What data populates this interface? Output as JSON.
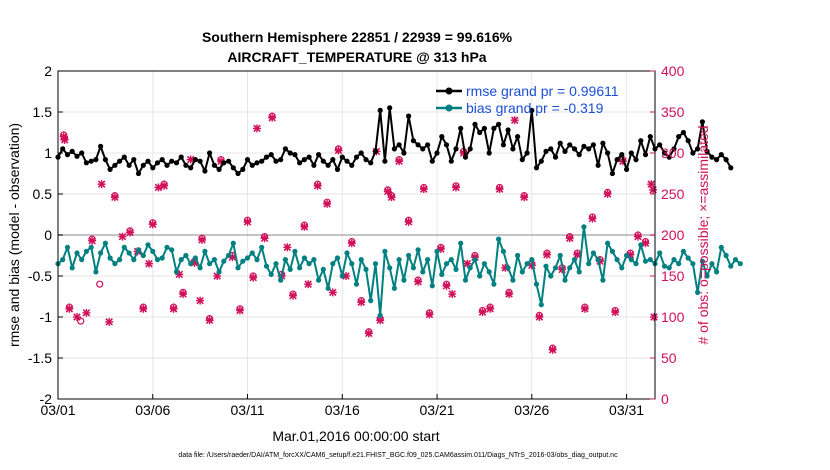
{
  "chart_data": {
    "type": "line",
    "title_line1": "Southern Hemisphere 22851 / 22939 = 99.616%",
    "title_line2": "AIRCRAFT_TEMPERATURE @ 313 hPa",
    "xlabel": "Mar.01,2016 00:00:00 start",
    "ylabel_left": "rmse and bias (model - observation)",
    "ylabel_right": "# of obs: o=possible; ×=assimilated",
    "footer": "data file: /Users/raeder/DAI/ATM_forcXX/CAM6_setup/f.e21.FHIST_BGC.f09_025.CAM6assim.011/Diags_NTrS_2016-03/obs_diag_output.nc",
    "x_ticks": [
      {
        "label": "03/01",
        "day": 0
      },
      {
        "label": "03/06",
        "day": 5
      },
      {
        "label": "03/11",
        "day": 10
      },
      {
        "label": "03/16",
        "day": 15
      },
      {
        "label": "03/21",
        "day": 20
      },
      {
        "label": "03/26",
        "day": 25
      },
      {
        "label": "03/31",
        "day": 30
      }
    ],
    "xlim_days": [
      0,
      31.5
    ],
    "ylim_left": [
      -2,
      2
    ],
    "y_ticks_left": [
      "-2",
      "-1.5",
      "-1",
      "-0.5",
      "0",
      "0.5",
      "1",
      "1.5",
      "2"
    ],
    "ylim_right": [
      0,
      400
    ],
    "y_ticks_right": [
      "0",
      "50",
      "100",
      "150",
      "200",
      "250",
      "300",
      "350",
      "400"
    ],
    "colors": {
      "rmse": "#000000",
      "bias": "#008080",
      "counts": "#d0105a",
      "legend_text": "#1a4fd6",
      "zero_line": "#b0b0b0"
    },
    "series": [
      {
        "name": "rmse grand pr = 0.99611",
        "key": "rmse",
        "step_days": 0.25,
        "values": [
          0.95,
          1.05,
          0.98,
          1.02,
          0.96,
          1.0,
          0.88,
          0.9,
          0.92,
          1.08,
          0.92,
          0.8,
          0.85,
          0.9,
          0.95,
          0.85,
          0.92,
          0.75,
          0.85,
          0.9,
          0.82,
          0.88,
          0.92,
          0.85,
          0.9,
          0.88,
          0.95,
          0.85,
          0.82,
          0.92,
          0.9,
          0.78,
          1.0,
          0.85,
          0.8,
          0.88,
          0.9,
          0.82,
          0.75,
          0.8,
          0.92,
          0.85,
          0.88,
          0.9,
          0.95,
          0.98,
          0.9,
          0.92,
          1.05,
          1.0,
          0.98,
          0.88,
          0.92,
          0.95,
          0.85,
          0.98,
          0.9,
          0.85,
          0.92,
          0.8,
          0.95,
          0.9,
          0.85,
          0.95,
          1.0,
          0.92,
          0.88,
          1.02,
          1.52,
          0.9,
          1.55,
          1.05,
          1.1,
          1.0,
          1.45,
          1.15,
          1.1,
          1.05,
          1.1,
          0.9,
          1.0,
          1.2,
          1.1,
          0.9,
          1.05,
          1.3,
          0.95,
          1.05,
          1.35,
          1.25,
          1.3,
          1.0,
          1.3,
          1.35,
          1.1,
          1.28,
          1.05,
          1.2,
          0.92,
          1.0,
          1.52,
          0.82,
          0.9,
          1.02,
          1.05,
          0.95,
          1.12,
          1.02,
          1.1,
          1.05,
          0.98,
          1.08,
          1.05,
          1.1,
          0.85,
          1.12,
          1.0,
          0.75,
          0.92,
          0.98,
          0.8,
          1.0,
          0.92,
          1.15,
          0.98,
          1.2,
          1.05,
          1.1,
          1.0,
          0.95,
          1.05,
          1.2,
          1.25,
          1.15,
          1.0,
          1.05,
          1.38,
          1.02,
          0.95,
          0.92,
          0.98,
          0.92,
          0.82
        ]
      },
      {
        "name": "bias grand pr = -0.319",
        "key": "bias",
        "step_days": 0.25,
        "values": [
          -0.35,
          -0.3,
          -0.15,
          -0.4,
          -0.22,
          -0.3,
          -0.2,
          -0.15,
          -0.45,
          -0.22,
          -0.1,
          -0.28,
          -0.35,
          -0.3,
          -0.15,
          -0.22,
          -0.3,
          -0.18,
          -0.25,
          -0.12,
          -0.2,
          -0.3,
          -0.28,
          -0.15,
          -0.18,
          -0.45,
          -0.3,
          -0.25,
          -0.35,
          -0.28,
          -0.4,
          -0.2,
          -0.35,
          -0.3,
          -0.45,
          -0.32,
          -0.25,
          -0.1,
          -0.4,
          -0.32,
          -0.28,
          -0.22,
          -0.3,
          -0.15,
          -0.38,
          -0.48,
          -0.35,
          -0.55,
          -0.3,
          -0.42,
          -0.2,
          -0.4,
          -0.28,
          -0.35,
          -0.3,
          -0.55,
          -0.42,
          -0.65,
          -0.35,
          -0.28,
          -0.5,
          -0.22,
          -0.35,
          -0.6,
          -0.3,
          -0.42,
          -0.8,
          -0.35,
          -0.98,
          -0.2,
          -0.4,
          -0.65,
          -0.3,
          -0.55,
          -0.25,
          -0.4,
          -0.18,
          -0.45,
          -0.3,
          -0.62,
          -0.2,
          -0.48,
          -0.35,
          -0.3,
          -0.42,
          -0.1,
          -0.55,
          -0.4,
          -0.3,
          -0.5,
          -0.35,
          -0.45,
          -0.6,
          -0.05,
          -0.2,
          -0.4,
          -0.55,
          -0.25,
          -0.45,
          -0.35,
          -0.3,
          -0.6,
          -0.85,
          -0.38,
          -0.5,
          -0.4,
          -0.25,
          -0.55,
          -0.4,
          -0.3,
          -0.45,
          0.1,
          -0.35,
          -0.22,
          -0.3,
          -0.55,
          -0.1,
          -0.2,
          -0.3,
          -0.4,
          -0.25,
          -0.3,
          -0.35,
          -0.12,
          -0.32,
          -0.3,
          -0.35,
          -0.22,
          -0.38,
          -0.4,
          -0.3,
          -0.35,
          -0.2,
          -0.28,
          -0.35,
          -0.7,
          -0.32,
          -0.5,
          -0.35,
          -0.45,
          -0.15,
          -0.25,
          -0.38,
          -0.3,
          -0.35
        ]
      }
    ],
    "obs_possible": [
      [
        0.3,
        322
      ],
      [
        0.35,
        318
      ],
      [
        0.6,
        112
      ],
      [
        1.2,
        95
      ],
      [
        1.8,
        195
      ],
      [
        2.2,
        140
      ],
      [
        3.0,
        248
      ],
      [
        3.8,
        205
      ],
      [
        4.5,
        112
      ],
      [
        5.0,
        215
      ],
      [
        5.6,
        262
      ],
      [
        6.1,
        112
      ],
      [
        6.6,
        130
      ],
      [
        7.2,
        168
      ],
      [
        7.6,
        196
      ],
      [
        8.0,
        98
      ],
      [
        8.6,
        292
      ],
      [
        9.2,
        175
      ],
      [
        9.6,
        110
      ],
      [
        10.0,
        218
      ],
      [
        10.3,
        150
      ],
      [
        10.9,
        198
      ],
      [
        11.3,
        345
      ],
      [
        11.8,
        152
      ],
      [
        12.4,
        128
      ],
      [
        13.0,
        212
      ],
      [
        13.7,
        262
      ],
      [
        14.2,
        240
      ],
      [
        14.8,
        305
      ],
      [
        15.5,
        192
      ],
      [
        16.0,
        120
      ],
      [
        16.4,
        82
      ],
      [
        17.0,
        98
      ],
      [
        17.4,
        255
      ],
      [
        17.6,
        248
      ],
      [
        18.0,
        292
      ],
      [
        18.5,
        218
      ],
      [
        19.0,
        145
      ],
      [
        19.3,
        258
      ],
      [
        19.6,
        105
      ],
      [
        20.2,
        185
      ],
      [
        20.5,
        140
      ],
      [
        21.0,
        260
      ],
      [
        21.4,
        302
      ],
      [
        22.0,
        175
      ],
      [
        22.4,
        108
      ],
      [
        22.8,
        112
      ],
      [
        23.3,
        258
      ],
      [
        23.8,
        130
      ],
      [
        24.6,
        248
      ],
      [
        25.0,
        165
      ],
      [
        25.4,
        102
      ],
      [
        25.8,
        178
      ],
      [
        26.1,
        62
      ],
      [
        26.6,
        160
      ],
      [
        27.0,
        198
      ],
      [
        27.4,
        178
      ],
      [
        27.8,
        112
      ],
      [
        28.2,
        222
      ],
      [
        28.6,
        170
      ],
      [
        29.0,
        252
      ],
      [
        29.4,
        108
      ],
      [
        29.8,
        292
      ],
      [
        30.2,
        178
      ],
      [
        30.6,
        200
      ],
      [
        31.0,
        192
      ]
    ],
    "obs_assimilated": [
      [
        0.3,
        320
      ],
      [
        0.35,
        316
      ],
      [
        0.6,
        110
      ],
      [
        1.0,
        100
      ],
      [
        1.5,
        105
      ],
      [
        1.8,
        193
      ],
      [
        2.3,
        262
      ],
      [
        2.7,
        94
      ],
      [
        3.0,
        246
      ],
      [
        3.4,
        198
      ],
      [
        3.8,
        203
      ],
      [
        4.2,
        180
      ],
      [
        4.5,
        110
      ],
      [
        4.8,
        165
      ],
      [
        5.0,
        213
      ],
      [
        5.3,
        258
      ],
      [
        5.6,
        260
      ],
      [
        6.1,
        110
      ],
      [
        6.4,
        152
      ],
      [
        6.6,
        128
      ],
      [
        7.0,
        292
      ],
      [
        7.2,
        166
      ],
      [
        7.5,
        120
      ],
      [
        7.6,
        194
      ],
      [
        8.0,
        96
      ],
      [
        8.4,
        150
      ],
      [
        8.6,
        290
      ],
      [
        9.2,
        173
      ],
      [
        9.6,
        108
      ],
      [
        10.0,
        216
      ],
      [
        10.3,
        148
      ],
      [
        10.5,
        330
      ],
      [
        10.9,
        196
      ],
      [
        11.3,
        343
      ],
      [
        11.8,
        150
      ],
      [
        12.1,
        185
      ],
      [
        12.4,
        126
      ],
      [
        13.0,
        210
      ],
      [
        13.2,
        140
      ],
      [
        13.7,
        260
      ],
      [
        14.2,
        238
      ],
      [
        14.5,
        130
      ],
      [
        14.8,
        303
      ],
      [
        15.2,
        150
      ],
      [
        15.5,
        190
      ],
      [
        16.0,
        118
      ],
      [
        16.4,
        80
      ],
      [
        16.8,
        302
      ],
      [
        17.0,
        96
      ],
      [
        17.4,
        253
      ],
      [
        17.6,
        246
      ],
      [
        18.0,
        290
      ],
      [
        18.5,
        216
      ],
      [
        19.0,
        143
      ],
      [
        19.3,
        256
      ],
      [
        19.6,
        103
      ],
      [
        20.2,
        183
      ],
      [
        20.5,
        138
      ],
      [
        20.8,
        128
      ],
      [
        21.0,
        258
      ],
      [
        21.4,
        300
      ],
      [
        21.6,
        165
      ],
      [
        22.0,
        173
      ],
      [
        22.4,
        106
      ],
      [
        22.8,
        110
      ],
      [
        23.3,
        256
      ],
      [
        23.6,
        160
      ],
      [
        23.8,
        128
      ],
      [
        24.1,
        340
      ],
      [
        24.6,
        246
      ],
      [
        25.0,
        163
      ],
      [
        25.4,
        100
      ],
      [
        25.8,
        176
      ],
      [
        26.1,
        60
      ],
      [
        26.6,
        158
      ],
      [
        27.0,
        196
      ],
      [
        27.4,
        176
      ],
      [
        27.8,
        110
      ],
      [
        28.2,
        220
      ],
      [
        28.6,
        168
      ],
      [
        29.0,
        250
      ],
      [
        29.4,
        106
      ],
      [
        29.8,
        290
      ],
      [
        30.2,
        176
      ],
      [
        30.6,
        198
      ],
      [
        31.0,
        190
      ],
      [
        31.3,
        262
      ],
      [
        31.4,
        255
      ],
      [
        31.45,
        100
      ]
    ],
    "count_points": [
      [
        0.3,
        322
      ],
      [
        0.35,
        318
      ],
      [
        0.6,
        112
      ],
      [
        1.0,
        100
      ],
      [
        1.2,
        95
      ],
      [
        1.5,
        105
      ],
      [
        1.8,
        195
      ],
      [
        2.2,
        140
      ],
      [
        2.3,
        262
      ],
      [
        2.7,
        94
      ],
      [
        3.0,
        248
      ],
      [
        3.4,
        198
      ],
      [
        3.8,
        205
      ],
      [
        4.2,
        180
      ],
      [
        4.5,
        112
      ],
      [
        4.8,
        165
      ],
      [
        5.0,
        215
      ],
      [
        5.3,
        258
      ],
      [
        5.6,
        262
      ],
      [
        6.1,
        112
      ],
      [
        6.4,
        152
      ],
      [
        6.6,
        130
      ],
      [
        7.0,
        292
      ],
      [
        7.2,
        168
      ],
      [
        7.5,
        120
      ],
      [
        7.6,
        196
      ],
      [
        8.0,
        98
      ],
      [
        8.4,
        150
      ],
      [
        8.6,
        292
      ],
      [
        9.2,
        175
      ],
      [
        9.6,
        110
      ],
      [
        10.0,
        218
      ],
      [
        10.3,
        150
      ],
      [
        10.5,
        330
      ],
      [
        10.9,
        198
      ],
      [
        11.3,
        345
      ],
      [
        11.8,
        152
      ],
      [
        12.1,
        185
      ],
      [
        12.4,
        128
      ],
      [
        13.0,
        212
      ],
      [
        13.2,
        140
      ],
      [
        13.7,
        262
      ],
      [
        14.2,
        240
      ],
      [
        14.5,
        130
      ],
      [
        14.8,
        305
      ],
      [
        15.2,
        150
      ],
      [
        15.5,
        192
      ],
      [
        16.0,
        120
      ],
      [
        16.4,
        82
      ],
      [
        16.8,
        302
      ],
      [
        17.0,
        98
      ],
      [
        17.4,
        255
      ],
      [
        17.6,
        248
      ],
      [
        18.0,
        292
      ],
      [
        18.5,
        218
      ],
      [
        19.0,
        145
      ],
      [
        19.3,
        258
      ],
      [
        19.6,
        105
      ],
      [
        20.2,
        185
      ],
      [
        20.5,
        140
      ],
      [
        20.8,
        128
      ],
      [
        21.0,
        260
      ],
      [
        21.4,
        302
      ],
      [
        21.6,
        165
      ],
      [
        22.0,
        175
      ],
      [
        22.4,
        108
      ],
      [
        22.8,
        112
      ],
      [
        23.3,
        258
      ],
      [
        23.6,
        160
      ],
      [
        23.8,
        130
      ],
      [
        24.1,
        340
      ],
      [
        24.6,
        248
      ],
      [
        25.0,
        165
      ],
      [
        25.4,
        102
      ],
      [
        25.8,
        178
      ],
      [
        26.1,
        62
      ],
      [
        26.6,
        160
      ],
      [
        27.0,
        198
      ],
      [
        27.4,
        178
      ],
      [
        27.8,
        112
      ],
      [
        28.2,
        222
      ],
      [
        28.6,
        170
      ],
      [
        29.0,
        252
      ],
      [
        29.4,
        108
      ],
      [
        29.8,
        292
      ],
      [
        30.2,
        178
      ],
      [
        30.6,
        200
      ],
      [
        31.0,
        192
      ],
      [
        31.3,
        262
      ],
      [
        31.4,
        255
      ],
      [
        31.45,
        100
      ]
    ]
  }
}
